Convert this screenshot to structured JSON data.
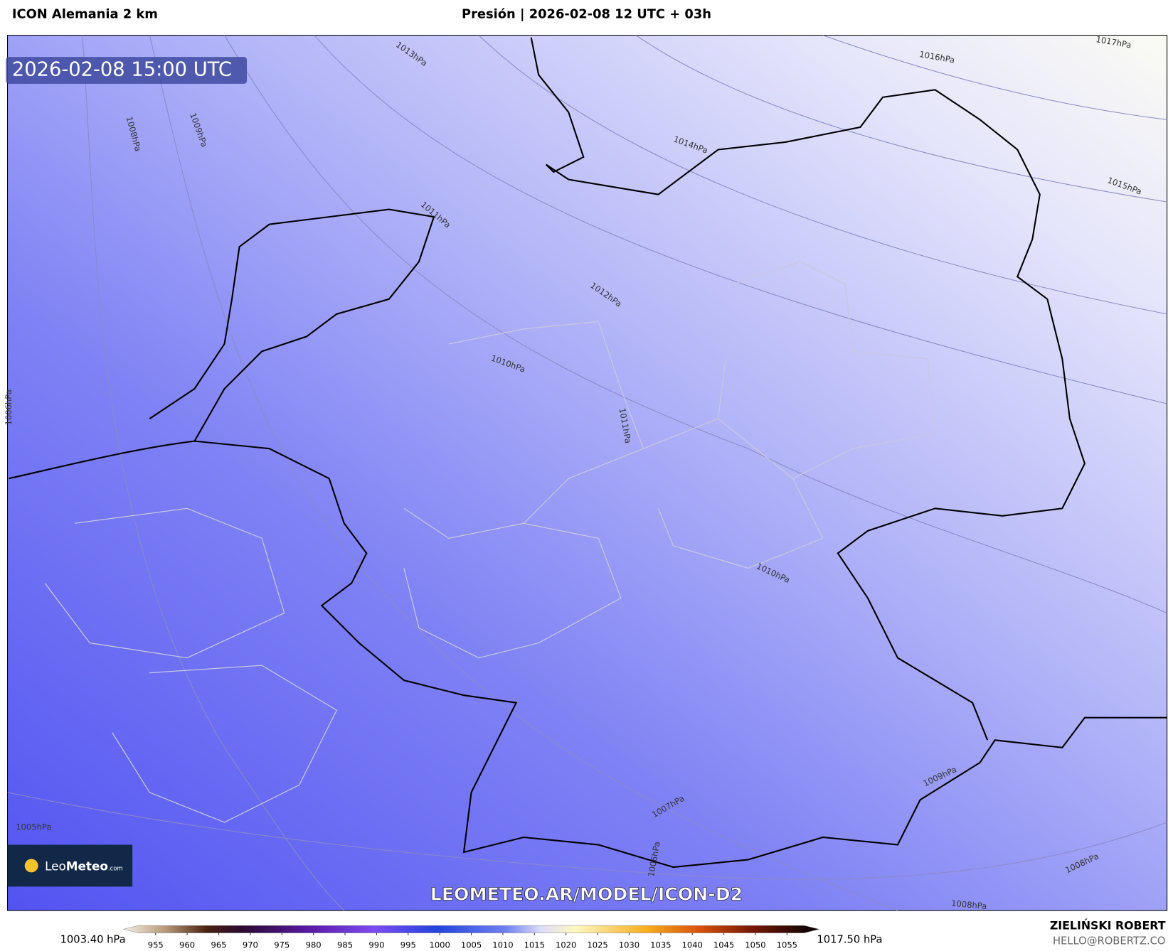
{
  "header": {
    "model": "ICON Alemania 2 km",
    "title": "Presión | 2026-02-08 12 UTC + 03h"
  },
  "map": {
    "timestamp": "2026-02-08 15:00 UTC",
    "isobar_labels": [
      "1013hPa",
      "1016hPa",
      "1017hPa",
      "1008hPa",
      "1009hPa",
      "1014hPa",
      "1015hPa",
      "1011hPa",
      "1012hPa",
      "1010hPa",
      "1006hPa",
      "1011hPa",
      "1010hPa",
      "1009hPa",
      "1007hPa",
      "1005hPa",
      "1006hPa",
      "1008hPa",
      "1008hPa"
    ],
    "logo": {
      "name_light": "Leo",
      "name_bold": "Meteo",
      "suffix": ".com"
    },
    "watermark": "LEOMETEO.AR/MODEL/ICON-D2"
  },
  "colorbar": {
    "min_label": "1003.40 hPa",
    "max_label": "1017.50 hPa",
    "ticks": [
      955,
      960,
      965,
      970,
      975,
      980,
      985,
      990,
      995,
      1000,
      1005,
      1010,
      1015,
      1020,
      1025,
      1030,
      1035,
      1040,
      1045,
      1050,
      1055
    ]
  },
  "footer": {
    "author": "ZIELIŃSKI ROBERT",
    "contact": "HELLO@ROBERTZ.CO"
  }
}
